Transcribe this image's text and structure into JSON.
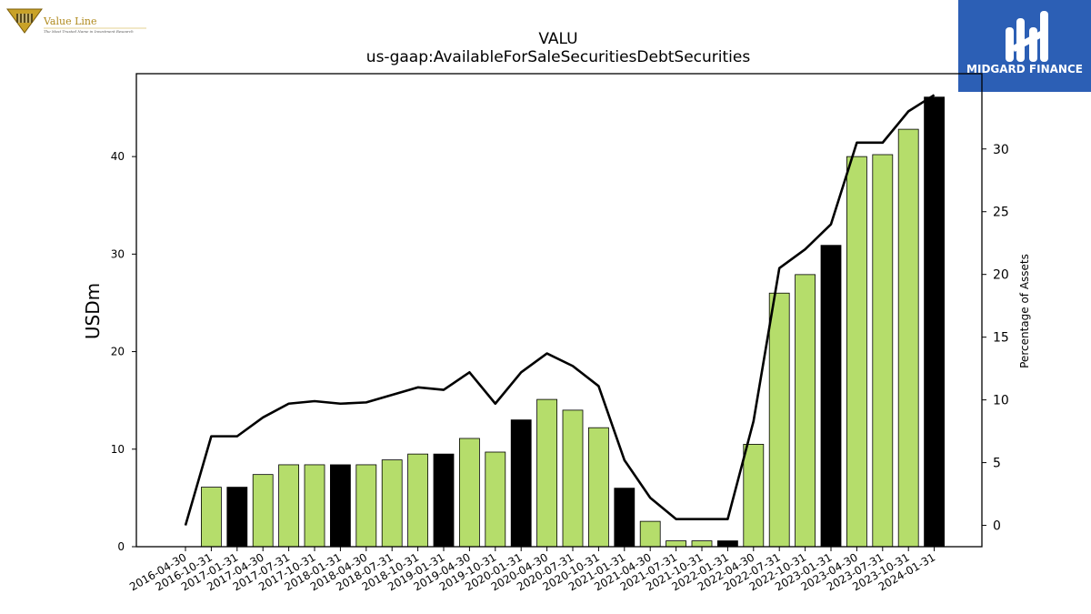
{
  "logos": {
    "value_line": {
      "name": "Value Line",
      "tagline": "The Most Trusted Name in Investment Research"
    },
    "midgard": {
      "name": "MIDGARD FINANCE"
    }
  },
  "chart_data": {
    "type": "bar",
    "title": "VALU",
    "subtitle": "us-gaap:AvailableForSaleSecuritiesDebtSecurities",
    "ylabel": "USDm",
    "y2label": "Percentage of Assets",
    "ylim": [
      0,
      48.5
    ],
    "y2lim": [
      -1.7,
      36
    ],
    "yticks": [
      0,
      10,
      20,
      30,
      40
    ],
    "y2ticks": [
      0,
      5,
      10,
      15,
      20,
      25,
      30
    ],
    "grid": false,
    "colors": {
      "quarter": "#b5dd6b",
      "fiscal_year_end": "#000000",
      "line": "#000000",
      "bar_edge": "#000000"
    },
    "categories": [
      "2016-04-30",
      "2016-10-31",
      "2017-01-31",
      "2017-04-30",
      "2017-07-31",
      "2017-10-31",
      "2018-01-31",
      "2018-04-30",
      "2018-07-31",
      "2018-10-31",
      "2019-01-31",
      "2019-04-30",
      "2019-10-31",
      "2020-01-31",
      "2020-04-30",
      "2020-07-31",
      "2020-10-31",
      "2021-01-31",
      "2021-04-30",
      "2021-07-31",
      "2021-10-31",
      "2022-01-31",
      "2022-04-30",
      "2022-07-31",
      "2022-10-31",
      "2023-01-31",
      "2023-04-30",
      "2023-07-31",
      "2023-10-31",
      "2024-01-31"
    ],
    "series": [
      {
        "type": "bar",
        "values": [
          null,
          6.1,
          6.1,
          7.4,
          8.4,
          8.4,
          8.4,
          8.4,
          8.9,
          9.5,
          9.5,
          11.1,
          9.7,
          13.0,
          15.1,
          14.0,
          12.2,
          6.0,
          2.6,
          0.6,
          0.6,
          0.6,
          10.5,
          26.0,
          27.9,
          30.9,
          40.0,
          40.2,
          42.8,
          46.1
        ],
        "fiscal_year_end": [
          false,
          false,
          true,
          false,
          false,
          false,
          true,
          false,
          false,
          false,
          true,
          false,
          false,
          true,
          false,
          false,
          false,
          true,
          false,
          false,
          false,
          true,
          false,
          false,
          false,
          true,
          false,
          false,
          false,
          true
        ]
      },
      {
        "type": "line",
        "axis": "right",
        "values": [
          0.0,
          7.1,
          7.1,
          8.6,
          9.7,
          9.9,
          9.7,
          9.8,
          10.4,
          11.0,
          10.8,
          12.2,
          9.7,
          12.2,
          13.7,
          12.7,
          11.1,
          5.2,
          2.2,
          0.5,
          0.5,
          0.5,
          8.3,
          20.5,
          22.0,
          24.0,
          30.5,
          30.5,
          33.0,
          34.3
        ]
      }
    ]
  }
}
